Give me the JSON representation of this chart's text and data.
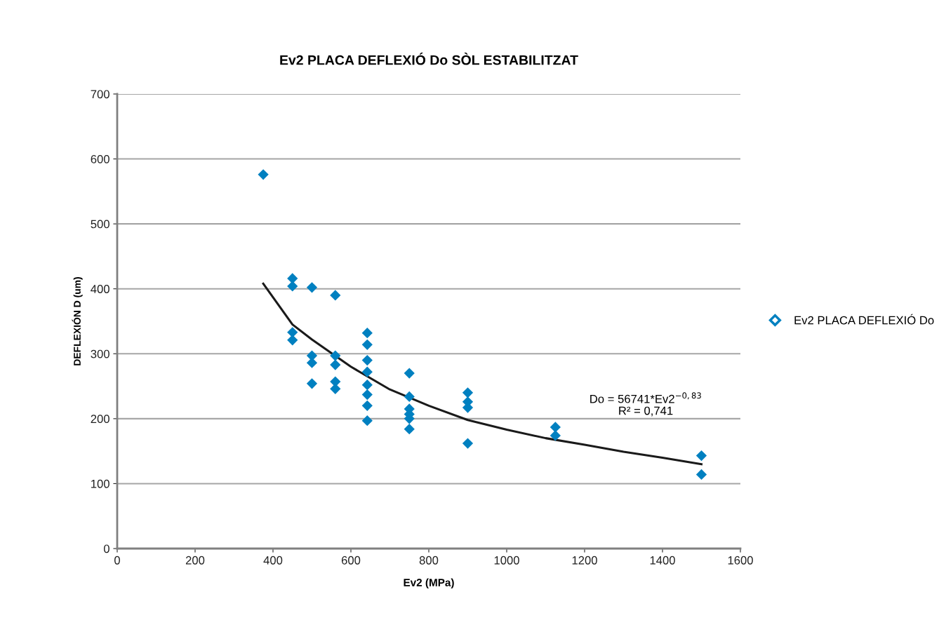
{
  "chart_data": {
    "type": "scatter",
    "title": "Ev2 PLACA DEFLEXIÓ Do SÒL ESTABILITZAT",
    "xlabel": "Ev2 (MPa)",
    "ylabel": "DEFLEXIÓN D (um)",
    "series": [
      {
        "name": "Ev2 PLACA DEFLEXIÓ Do",
        "color": "#0080c0",
        "marker": "diamond",
        "x": [
          375,
          450,
          450,
          450,
          450,
          500,
          500,
          500,
          500,
          560,
          560,
          560,
          560,
          560,
          642,
          642,
          642,
          642,
          642,
          642,
          642,
          642,
          750,
          750,
          750,
          750,
          750,
          750,
          900,
          900,
          900,
          900,
          1125,
          1125,
          1500,
          1500
        ],
        "values": [
          576,
          416,
          404,
          333,
          321,
          402,
          297,
          286,
          254,
          390,
          297,
          283,
          257,
          246,
          332,
          314,
          290,
          272,
          252,
          237,
          220,
          197,
          270,
          234,
          215,
          207,
          200,
          184,
          240,
          226,
          217,
          162,
          187,
          174,
          143,
          114
        ]
      },
      {
        "type": "line",
        "color": "#1a1a1a",
        "x": [
          375,
          450,
          500,
          600,
          700,
          800,
          900,
          1000,
          1100,
          1200,
          1300,
          1400,
          1500
        ],
        "values": [
          408,
          345,
          322,
          280,
          245,
          220,
          198,
          183,
          170,
          160,
          149,
          140,
          130
        ]
      }
    ],
    "annotations": [
      "Do = 56741*Ev2$^{−0,83}$\nR² = 0,741"
    ],
    "xlim": [
      0,
      1600
    ],
    "xticks": [
      0,
      200,
      400,
      600,
      800,
      1000,
      1200,
      1400,
      1600
    ],
    "ylim": [
      0,
      700
    ],
    "yticks": [
      0,
      100,
      200,
      300,
      400,
      500,
      600,
      700
    ],
    "grid": "y",
    "legend": "right"
  }
}
